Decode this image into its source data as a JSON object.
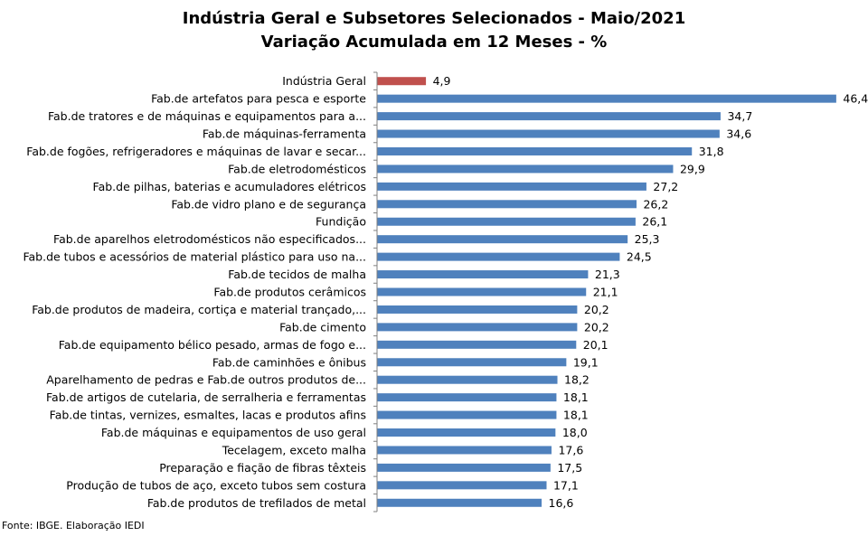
{
  "chart_data": {
    "type": "bar",
    "orientation": "horizontal",
    "title": "Indústria Geral e Subsetores Selecionados - Maio/2021",
    "subtitle": "Variação Acumulada em 12 Meses - %",
    "categories": [
      "Indústria Geral",
      "Fab.de artefatos para pesca e esporte",
      "Fab.de tratores e de máquinas e equipamentos para a...",
      "Fab.de máquinas-ferramenta",
      "Fab.de fogões, refrigeradores e máquinas de lavar e secar...",
      "Fab.de eletrodomésticos",
      "Fab.de pilhas, baterias e acumuladores elétricos",
      "Fab.de vidro plano e de segurança",
      "Fundição",
      "Fab.de aparelhos eletrodomésticos não especificados...",
      "Fab.de tubos e acessórios de material plástico para uso na...",
      "Fab.de tecidos de malha",
      "Fab.de produtos cerâmicos",
      "Fab.de produtos de madeira, cortiça e material trançado,...",
      "Fab.de cimento",
      "Fab.de equipamento bélico pesado, armas de fogo e...",
      "Fab.de caminhões e ônibus",
      "Aparelhamento de pedras e Fab.de outros produtos de...",
      "Fab.de artigos de cutelaria, de serralheria e ferramentas",
      "Fab.de tintas, vernizes, esmaltes, lacas e produtos afins",
      "Fab.de máquinas e equipamentos de uso geral",
      "Tecelagem, exceto malha",
      "Preparação e fiação de fibras têxteis",
      "Produção de tubos de aço, exceto tubos sem costura",
      "Fab.de produtos de trefilados de metal"
    ],
    "values": [
      4.9,
      46.4,
      34.7,
      34.6,
      31.8,
      29.9,
      27.2,
      26.2,
      26.1,
      25.3,
      24.5,
      21.3,
      21.1,
      20.2,
      20.2,
      20.1,
      19.1,
      18.2,
      18.1,
      18.1,
      18.0,
      17.6,
      17.5,
      17.1,
      16.6
    ],
    "value_labels": [
      "4,9",
      "46,4",
      "34,7",
      "34,6",
      "31,8",
      "29,9",
      "27,2",
      "26,2",
      "26,1",
      "25,3",
      "24,5",
      "21,3",
      "21,1",
      "20,2",
      "20,2",
      "20,1",
      "19,1",
      "18,2",
      "18,1",
      "18,1",
      "18,0",
      "17,6",
      "17,5",
      "17,1",
      "16,6"
    ],
    "xlim": [
      0,
      50
    ],
    "grid": false,
    "legend": "none",
    "colors": {
      "highlight": "#C0504D",
      "default": "#4F81BD",
      "axis": "#808080"
    }
  },
  "source": "Fonte: IBGE. Elaboração IEDI"
}
